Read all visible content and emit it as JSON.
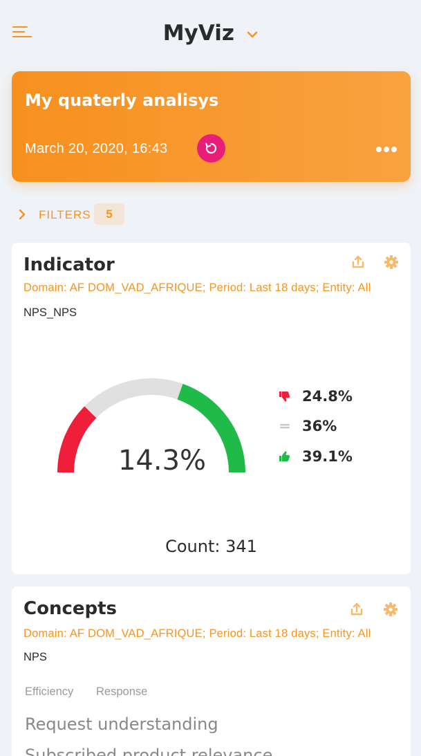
{
  "app": {
    "title": "MyViz"
  },
  "hero": {
    "title": "My quaterly analisys",
    "date": "March 20, 2020, 16:43"
  },
  "filters": {
    "label": "FILTERS",
    "count": "5"
  },
  "indicator_card": {
    "title": "Indicator",
    "description": "Domain: AF DOM_VAD_AFRIQUE; Period: Last 18 days; Entity: All",
    "metric": "NPS_NPS",
    "gauge_value": "14.3%",
    "count": "Count: 341",
    "legend": [
      {
        "icon": "thumbs-down-icon",
        "value": "24.8%",
        "color": "#ef1f3b"
      },
      {
        "icon": "equals-icon",
        "value": "36%",
        "color": "#c8c8c8"
      },
      {
        "icon": "thumbs-up-icon",
        "value": "39.1%",
        "color": "#1fba48"
      }
    ]
  },
  "concepts_card": {
    "title": "Concepts",
    "description": "Domain: AF DOM_VAD_AFRIQUE; Period: Last 18 days; Entity: All",
    "metric": "NPS",
    "tabs": [
      "Efficiency",
      "Response"
    ],
    "items": [
      "Request understanding",
      "Subscribed product relevance"
    ]
  },
  "colors": {
    "accent": "#f7941d",
    "refresh": "#e91e7a",
    "detractor": "#ef1f3b",
    "passive": "#e0e0e0",
    "promoter": "#1fba48"
  },
  "chart_data": {
    "type": "gauge",
    "value": 14.3,
    "segments": [
      {
        "name": "detractors",
        "value": 24.8,
        "color": "#ef1f3b"
      },
      {
        "name": "passives",
        "value": 36,
        "color": "#e0e0e0"
      },
      {
        "name": "promoters",
        "value": 39.1,
        "color": "#1fba48"
      }
    ],
    "count": 341
  }
}
